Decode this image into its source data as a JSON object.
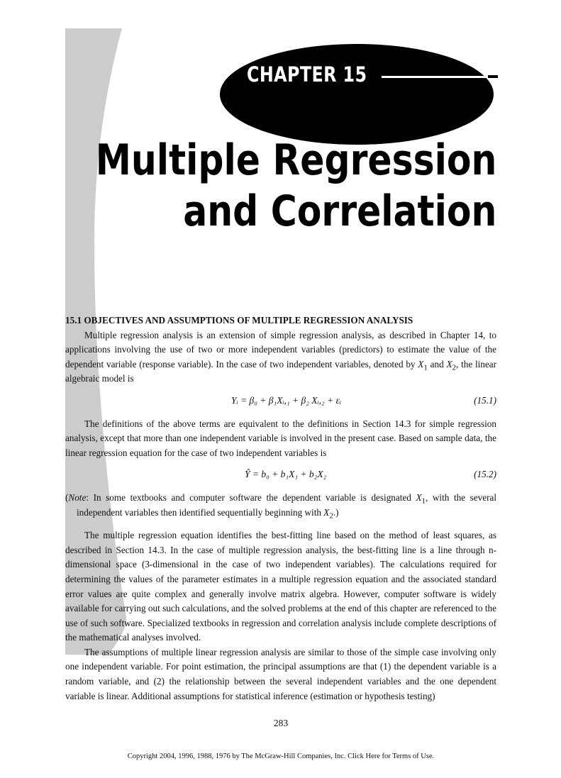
{
  "chapter": {
    "label": "CHAPTER 15",
    "title_line1": "Multiple Regression",
    "title_line2": "and Correlation"
  },
  "section": {
    "heading": "15.1   OBJECTIVES AND ASSUMPTIONS OF MULTIPLE REGRESSION ANALYSIS"
  },
  "paragraphs": {
    "p1_a": "Multiple regression analysis is an extension of simple regression analysis, as described in Chapter 14, to applications involving the use of two or more independent variables (predictors) to estimate the value of the dependent variable (response variable). In the case of two independent variables, denoted by ",
    "p1_b": " and ",
    "p1_c": ", the linear algebraic model is",
    "p2": "The definitions of the above terms are equivalent to the definitions in Section 14.3 for simple regression analysis, except that more than one independent variable is involved in the present case. Based on sample data, the linear regression equation for the case of two independent variables is",
    "note_label": "Note",
    "note_a": ":   In some textbooks and computer software the dependent variable is designated ",
    "note_b": ", with the several independent variables then identified sequentially beginning with ",
    "note_c": ".)",
    "p3": "The multiple regression equation identifies the best-fitting line based on the method of least squares, as described in Section 14.3. In the case of multiple regression analysis, the best-fitting line is a line through n-dimensional space (3-dimensional in the case of two independent variables). The calculations required for determining the values of the parameter estimates in a multiple regression equation and the associated standard error values are quite complex and generally involve matrix algebra. However, computer software is widely available for carrying out such calculations, and the solved problems at the end of this chapter are referenced to the use of such software. Specialized textbooks in regression and correlation analysis include complete descriptions of the mathematical analyses involved.",
    "p4": "The assumptions of multiple linear regression analysis are similar to those of the simple case involving only one independent variable. For point estimation, the principal assumptions are that (1) the dependent variable is a random variable, and (2) the relationship between the several independent variables and the one dependent variable is linear. Additional assumptions for statistical inference (estimation or hypothesis testing)"
  },
  "symbols": {
    "x1": "X",
    "x1_sub": "1",
    "x2": "X",
    "x2_sub": "2"
  },
  "equations": {
    "eq1_text": "Yᵢ = β₀ + β₁Xᵢ,₁ + β₂ Xᵢ,₂ + εᵢ",
    "eq1_number": "(15.1)",
    "eq2_text": "Ŷ = b₀ + b₁X₁ + b₂X₂",
    "eq2_number": "(15.2)"
  },
  "footer": {
    "page_number": "283",
    "copyright": "Copyright 2004, 1996, 1988, 1976 by The McGraw-Hill Companies, Inc. Click Here for Terms of Use."
  },
  "colors": {
    "band": "#cccccc",
    "ellipse": "#000000"
  }
}
